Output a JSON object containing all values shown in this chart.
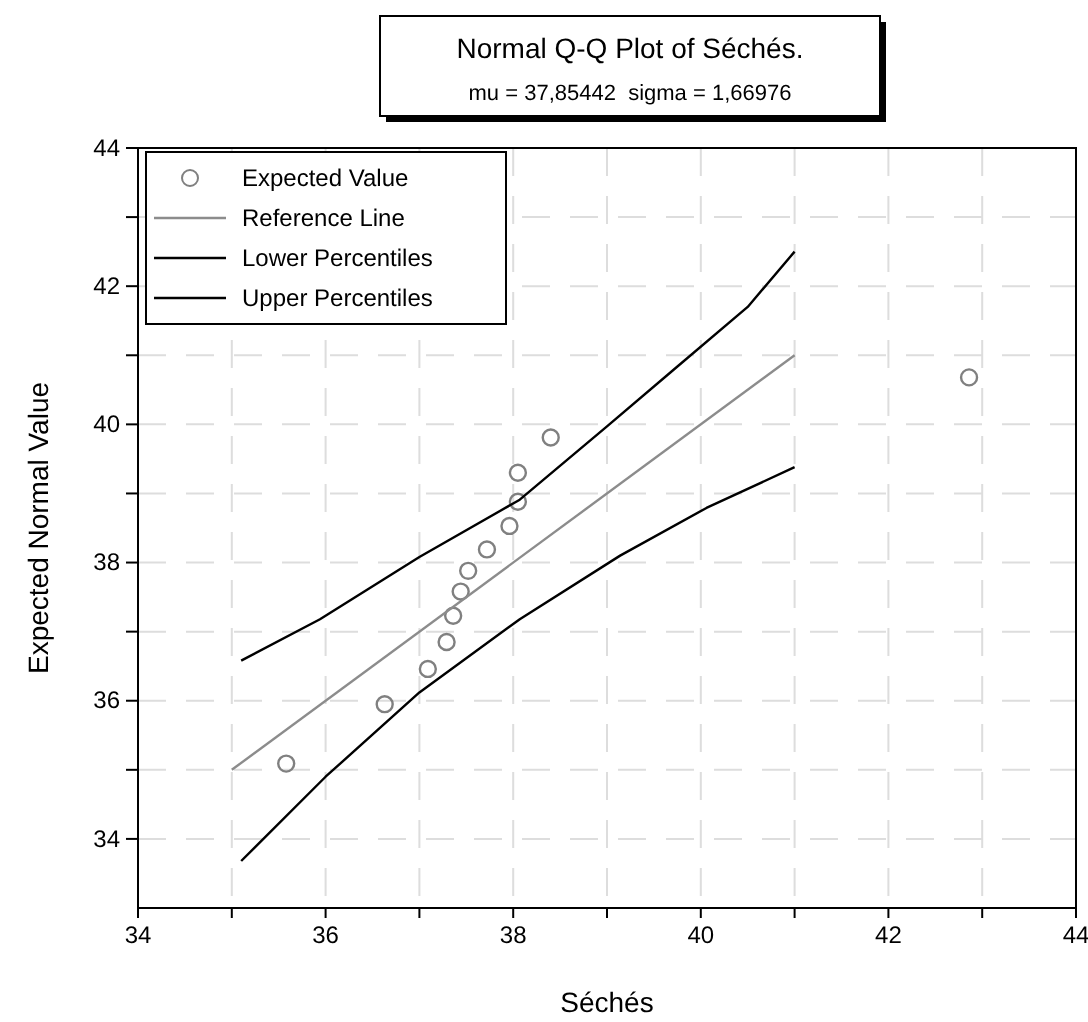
{
  "chart_data": {
    "type": "scatter",
    "title": "Normal Q-Q Plot of Séchés.",
    "subtitle": "mu = 37,85442  sigma = 1,66976",
    "xlabel": "Séchés",
    "ylabel": "Expected Normal Value",
    "xlim": [
      34,
      44
    ],
    "ylim": [
      33,
      44
    ],
    "xticks": [
      34,
      {
        "value": 35,
        "label": null
      },
      36,
      {
        "value": 37,
        "label": null
      },
      38,
      {
        "value": 39,
        "label": null
      },
      40,
      {
        "value": 41,
        "label": null
      },
      42,
      {
        "value": 43,
        "label": null
      },
      44
    ],
    "yticks": [
      34,
      {
        "value": 35,
        "label": null
      },
      36,
      {
        "value": 37,
        "label": null
      },
      38,
      {
        "value": 39,
        "label": null
      },
      40,
      {
        "value": 41,
        "label": null
      },
      42,
      {
        "value": 43,
        "label": null
      },
      44
    ],
    "grid": true,
    "legend": "top left",
    "series": [
      {
        "name": "Expected Value",
        "marker": "circle",
        "color": "#808080",
        "x": [
          35.58,
          36.63,
          37.09,
          37.29,
          37.36,
          37.44,
          37.52,
          37.72,
          37.96,
          38.05,
          38.05,
          38.4,
          42.86
        ],
        "values": [
          35.09,
          35.95,
          36.46,
          36.85,
          37.23,
          37.58,
          37.88,
          38.19,
          38.53,
          38.88,
          39.3,
          39.81,
          40.68
        ]
      },
      {
        "name": "Reference Line",
        "type": "line",
        "marker": "none",
        "color": "#8c8c8c",
        "x": [
          35,
          41
        ],
        "values": [
          35,
          41
        ]
      },
      {
        "name": "Lower Percentiles",
        "type": "line",
        "marker": "none",
        "color": "#000000",
        "x": [
          35.1,
          36,
          37,
          38.07,
          39.14,
          40.06,
          41
        ],
        "values": [
          33.68,
          34.9,
          36.12,
          37.18,
          38.1,
          38.79,
          39.38
        ]
      },
      {
        "name": "Upper Percentiles",
        "type": "line",
        "marker": "none",
        "color": "#000000",
        "x": [
          35.1,
          35.94,
          37,
          38.07,
          39,
          39.71,
          40.5,
          41
        ],
        "values": [
          36.58,
          37.18,
          38.08,
          38.91,
          39.97,
          40.79,
          41.7,
          42.5
        ]
      }
    ]
  }
}
